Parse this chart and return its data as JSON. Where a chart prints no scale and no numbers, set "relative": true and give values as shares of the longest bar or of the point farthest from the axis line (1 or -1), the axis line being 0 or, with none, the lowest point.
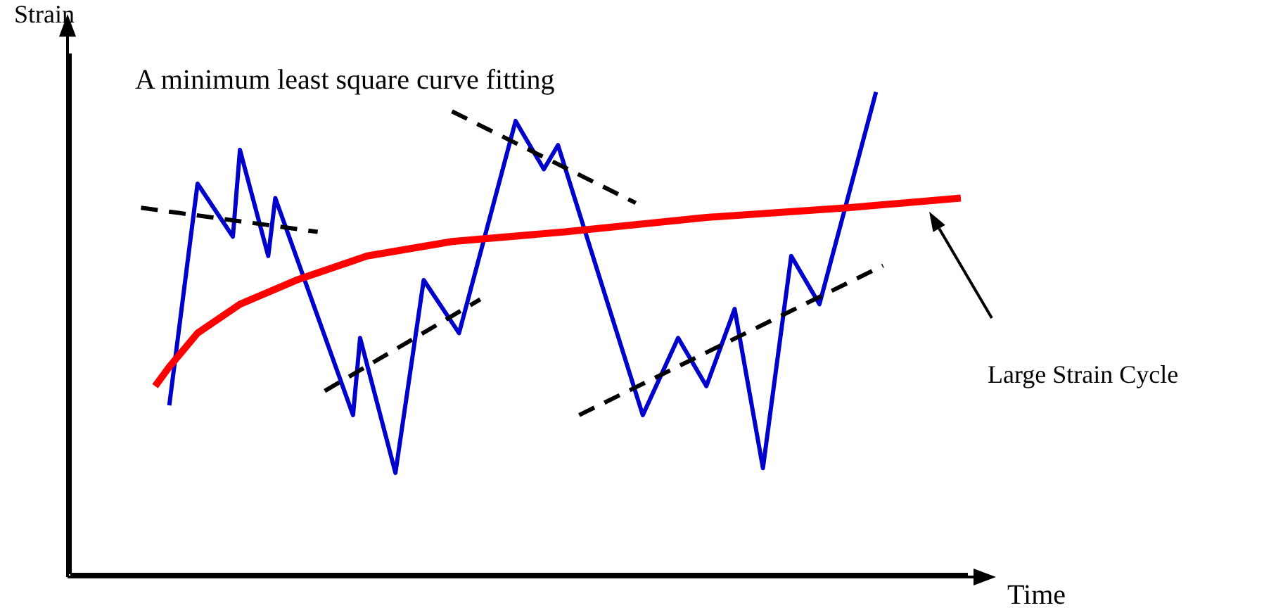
{
  "chart_data": {
    "type": "line",
    "relative": true,
    "xlabel": "Time",
    "ylabel": "Strain",
    "ylim": [
      0,
      1.08
    ],
    "marker": "none",
    "annotations": [
      "A minimum least square curve fitting",
      "Large Strain Cycle"
    ],
    "categories": [
      null,
      null,
      null,
      null,
      null,
      null,
      null,
      null,
      null,
      null,
      null,
      null,
      null,
      null,
      null,
      null,
      null,
      null,
      null,
      null,
      null,
      null,
      null,
      null,
      null,
      null,
      null,
      null,
      null,
      null,
      null,
      null,
      null,
      null,
      null,
      null,
      null,
      null,
      null,
      null,
      null,
      null,
      null,
      null,
      null,
      null,
      null,
      null,
      null,
      null,
      null,
      null,
      null,
      null,
      null,
      null,
      null,
      null,
      null,
      null,
      null,
      null,
      null,
      null,
      null,
      null,
      null,
      null,
      null,
      null,
      null,
      null,
      null,
      null,
      null,
      null,
      null,
      null,
      null,
      null,
      null,
      null,
      null,
      null,
      null,
      null,
      null,
      null,
      null,
      null,
      null,
      null,
      null,
      null,
      null,
      null,
      null,
      null,
      null,
      null,
      null,
      null,
      null,
      null,
      null,
      null,
      null,
      null,
      null,
      null,
      null,
      null,
      null,
      null,
      null,
      null,
      null,
      null,
      null,
      null,
      null,
      null,
      null,
      null,
      null,
      null,
      null,
      null
    ],
    "series": [
      {
        "color": "#0000cc",
        "line_style": "solid",
        "values": [
          null,
          null,
          null,
          null,
          null,
          null,
          null,
          null,
          null,
          null,
          null,
          null,
          null,
          null,
          0.35,
          null,
          null,
          null,
          0.81,
          null,
          null,
          null,
          null,
          0.7,
          0.88,
          null,
          null,
          null,
          0.66,
          0.78,
          null,
          null,
          null,
          null,
          null,
          null,
          null,
          null,
          null,
          null,
          0.33,
          0.49,
          null,
          null,
          null,
          null,
          0.21,
          null,
          null,
          null,
          0.61,
          null,
          null,
          null,
          null,
          0.5,
          null,
          null,
          null,
          null,
          null,
          null,
          null,
          0.94,
          null,
          null,
          null,
          0.84,
          null,
          0.89,
          null,
          null,
          null,
          null,
          null,
          null,
          null,
          null,
          null,
          null,
          null,
          0.33,
          null,
          null,
          null,
          null,
          0.49,
          null,
          null,
          null,
          0.39,
          null,
          null,
          null,
          0.55,
          null,
          null,
          null,
          0.22,
          null,
          null,
          null,
          0.66,
          null,
          null,
          null,
          0.56,
          null,
          null,
          null,
          null,
          null,
          null,
          null,
          1,
          null,
          null,
          null,
          null,
          null,
          null,
          null,
          null,
          null,
          null,
          null,
          null,
          null
        ]
      },
      {
        "color": "#ff0000",
        "line_style": "solid",
        "values": [
          null,
          null,
          null,
          null,
          null,
          null,
          null,
          null,
          null,
          null,
          null,
          null,
          0.39,
          null,
          0.43,
          null,
          null,
          null,
          0.5,
          null,
          null,
          null,
          null,
          null,
          0.56,
          null,
          null,
          null,
          null,
          null,
          null,
          null,
          0.61,
          null,
          null,
          null,
          null,
          null,
          null,
          null,
          null,
          null,
          0.66,
          null,
          null,
          null,
          null,
          null,
          null,
          null,
          null,
          null,
          null,
          null,
          0.69,
          null,
          null,
          null,
          null,
          null,
          null,
          null,
          null,
          null,
          null,
          null,
          null,
          null,
          null,
          null,
          0.71,
          null,
          null,
          null,
          null,
          null,
          null,
          null,
          null,
          null,
          null,
          null,
          null,
          null,
          null,
          null,
          null,
          null,
          null,
          null,
          0.74,
          null,
          null,
          null,
          null,
          null,
          null,
          null,
          null,
          null,
          null,
          null,
          null,
          null,
          null,
          null,
          null,
          null,
          null,
          null,
          0.76,
          null,
          null,
          null,
          null,
          null,
          null,
          null,
          null,
          null,
          null,
          null,
          null,
          null,
          null,
          null,
          0.78,
          null
        ]
      },
      {
        "color": "#000000",
        "line_style": "dashed",
        "values": [
          null,
          null,
          null,
          null,
          null,
          null,
          null,
          null,
          null,
          null,
          0.76,
          null,
          null,
          null,
          null,
          null,
          null,
          null,
          null,
          null,
          null,
          null,
          null,
          null,
          null,
          null,
          null,
          null,
          null,
          null,
          null,
          null,
          null,
          null,
          null,
          0.71,
          null,
          null,
          null,
          null,
          null,
          null,
          null,
          null,
          null,
          null,
          null,
          null,
          null,
          null,
          null,
          null,
          null,
          null,
          null,
          null,
          null,
          null,
          null,
          null,
          null,
          null,
          null,
          null,
          null,
          null,
          null,
          null,
          null,
          null,
          null,
          null,
          null,
          null,
          null,
          null,
          null,
          null,
          null,
          null,
          null,
          null,
          null,
          null,
          null,
          null,
          null,
          null,
          null,
          null,
          null,
          null,
          null,
          null,
          null,
          null,
          null,
          null,
          null,
          null,
          null,
          null,
          null,
          null,
          null,
          null,
          null,
          null,
          null,
          null,
          null,
          null,
          null,
          null,
          null,
          null,
          null,
          null,
          null,
          null,
          null,
          null,
          null,
          null,
          null,
          null,
          null,
          null
        ]
      },
      {
        "color": "#000000",
        "line_style": "dashed",
        "values": [
          null,
          null,
          null,
          null,
          null,
          null,
          null,
          null,
          null,
          null,
          null,
          null,
          null,
          null,
          null,
          null,
          null,
          null,
          null,
          null,
          null,
          null,
          null,
          null,
          null,
          null,
          null,
          null,
          null,
          null,
          null,
          null,
          null,
          null,
          null,
          null,
          0.38,
          null,
          null,
          null,
          null,
          null,
          null,
          null,
          null,
          null,
          null,
          null,
          null,
          null,
          null,
          null,
          null,
          null,
          null,
          null,
          null,
          null,
          0.57,
          null,
          null,
          null,
          null,
          null,
          null,
          null,
          null,
          null,
          null,
          null,
          null,
          null,
          null,
          null,
          null,
          null,
          null,
          null,
          null,
          null,
          null,
          null,
          null,
          null,
          null,
          null,
          null,
          null,
          null,
          null,
          null,
          null,
          null,
          null,
          null,
          null,
          null,
          null,
          null,
          null,
          null,
          null,
          null,
          null,
          null,
          null,
          null,
          null,
          null,
          null,
          null,
          null,
          null,
          null,
          null,
          null,
          null,
          null,
          null,
          null,
          null,
          null,
          null,
          null,
          null,
          null,
          null,
          null
        ]
      },
      {
        "color": "#000000",
        "line_style": "dashed",
        "values": [
          null,
          null,
          null,
          null,
          null,
          null,
          null,
          null,
          null,
          null,
          null,
          null,
          null,
          null,
          null,
          null,
          null,
          null,
          null,
          null,
          null,
          null,
          null,
          null,
          null,
          null,
          null,
          null,
          null,
          null,
          null,
          null,
          null,
          null,
          null,
          null,
          null,
          null,
          null,
          null,
          null,
          null,
          null,
          null,
          null,
          null,
          null,
          null,
          null,
          null,
          null,
          null,
          null,
          null,
          0.96,
          null,
          null,
          null,
          null,
          null,
          null,
          null,
          null,
          null,
          null,
          null,
          null,
          null,
          null,
          null,
          null,
          null,
          null,
          null,
          null,
          null,
          null,
          null,
          null,
          null,
          0.77,
          null,
          null,
          null,
          null,
          null,
          null,
          null,
          null,
          null,
          null,
          null,
          null,
          null,
          null,
          null,
          null,
          null,
          null,
          null,
          null,
          null,
          null,
          null,
          null,
          null,
          null,
          null,
          null,
          null,
          null,
          null,
          null,
          null,
          null,
          null,
          null,
          null,
          null,
          null,
          null,
          null,
          null,
          null,
          null,
          null,
          null,
          null
        ]
      },
      {
        "color": "#000000",
        "line_style": "dashed",
        "values": [
          null,
          null,
          null,
          null,
          null,
          null,
          null,
          null,
          null,
          null,
          null,
          null,
          null,
          null,
          null,
          null,
          null,
          null,
          null,
          null,
          null,
          null,
          null,
          null,
          null,
          null,
          null,
          null,
          null,
          null,
          null,
          null,
          null,
          null,
          null,
          null,
          null,
          null,
          null,
          null,
          null,
          null,
          null,
          null,
          null,
          null,
          null,
          null,
          null,
          null,
          null,
          null,
          null,
          null,
          null,
          null,
          null,
          null,
          null,
          null,
          null,
          null,
          null,
          null,
          null,
          null,
          null,
          null,
          null,
          null,
          null,
          null,
          0.33,
          null,
          null,
          null,
          null,
          null,
          null,
          null,
          null,
          null,
          null,
          null,
          null,
          null,
          null,
          null,
          null,
          null,
          null,
          null,
          null,
          null,
          null,
          null,
          null,
          null,
          null,
          null,
          null,
          null,
          null,
          null,
          null,
          null,
          null,
          null,
          null,
          null,
          null,
          null,
          null,
          null,
          null,
          0.64,
          null,
          null,
          null,
          null,
          null,
          null,
          null,
          null,
          null,
          null,
          null,
          null
        ]
      }
    ]
  }
}
